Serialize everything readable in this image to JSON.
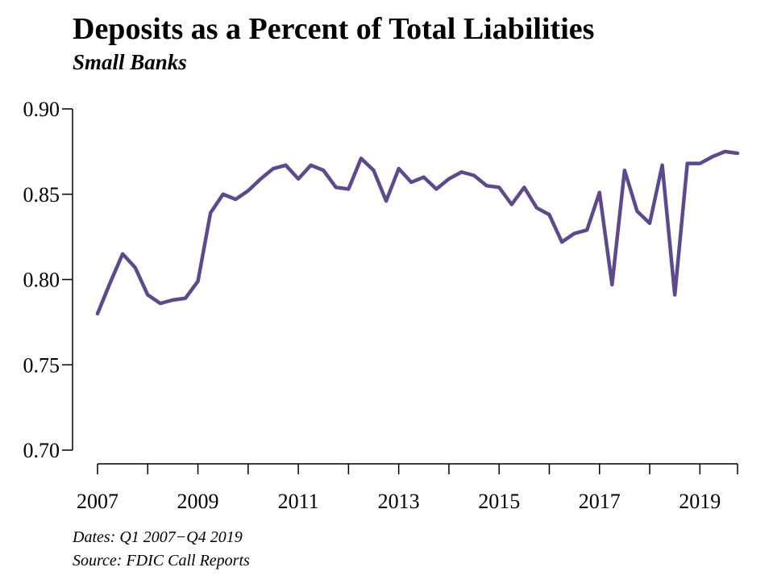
{
  "chart_data": {
    "type": "line",
    "title": "Deposits as a Percent of Total Liabilities",
    "subtitle": "Small Banks",
    "xlabel": "",
    "ylabel": "",
    "xlim": [
      2007,
      2019.75
    ],
    "ylim": [
      0.7,
      0.9
    ],
    "y_ticks": [
      "0.70",
      "0.75",
      "0.80",
      "0.85",
      "0.90"
    ],
    "y_tick_values": [
      0.7,
      0.75,
      0.8,
      0.85,
      0.9
    ],
    "x_tick_labels": [
      "2007",
      "2009",
      "2011",
      "2013",
      "2015",
      "2017",
      "2019"
    ],
    "x_tick_values": [
      2007,
      2009,
      2011,
      2013,
      2015,
      2017,
      2019
    ],
    "x_minor_tick_values": [
      2007,
      2008,
      2009,
      2010,
      2011,
      2012,
      2013,
      2014,
      2015,
      2016,
      2017,
      2018,
      2019
    ],
    "grid": false,
    "legend": "none",
    "series_color": "#5c4a8c",
    "series": [
      {
        "x": [
          2007.0,
          2007.25,
          2007.5,
          2007.75,
          2008.0,
          2008.25,
          2008.5,
          2008.75,
          2009.0,
          2009.25,
          2009.5,
          2009.75,
          2010.0,
          2010.25,
          2010.5,
          2010.75,
          2011.0,
          2011.25,
          2011.5,
          2011.75,
          2012.0,
          2012.25,
          2012.5,
          2012.75,
          2013.0,
          2013.25,
          2013.5,
          2013.75,
          2014.0,
          2014.25,
          2014.5,
          2014.75,
          2015.0,
          2015.25,
          2015.5,
          2015.75,
          2016.0,
          2016.25,
          2016.5,
          2016.75,
          2017.0,
          2017.25,
          2017.5,
          2017.75,
          2018.0,
          2018.25,
          2018.5,
          2018.75,
          2019.0,
          2019.25,
          2019.5,
          2019.75
        ],
        "values": [
          0.78,
          0.798,
          0.815,
          0.807,
          0.791,
          0.786,
          0.788,
          0.789,
          0.799,
          0.839,
          0.85,
          0.847,
          0.852,
          0.859,
          0.865,
          0.867,
          0.859,
          0.867,
          0.864,
          0.854,
          0.853,
          0.871,
          0.864,
          0.846,
          0.865,
          0.857,
          0.86,
          0.853,
          0.859,
          0.863,
          0.861,
          0.855,
          0.854,
          0.844,
          0.854,
          0.842,
          0.838,
          0.822,
          0.827,
          0.829,
          0.851,
          0.797,
          0.864,
          0.84,
          0.833,
          0.867,
          0.791,
          0.868,
          0.868,
          0.872,
          0.875,
          0.874
        ]
      }
    ]
  },
  "footnotes": {
    "dates": "Dates: Q1 2007−Q4 2019",
    "source": "Source: FDIC Call Reports"
  }
}
